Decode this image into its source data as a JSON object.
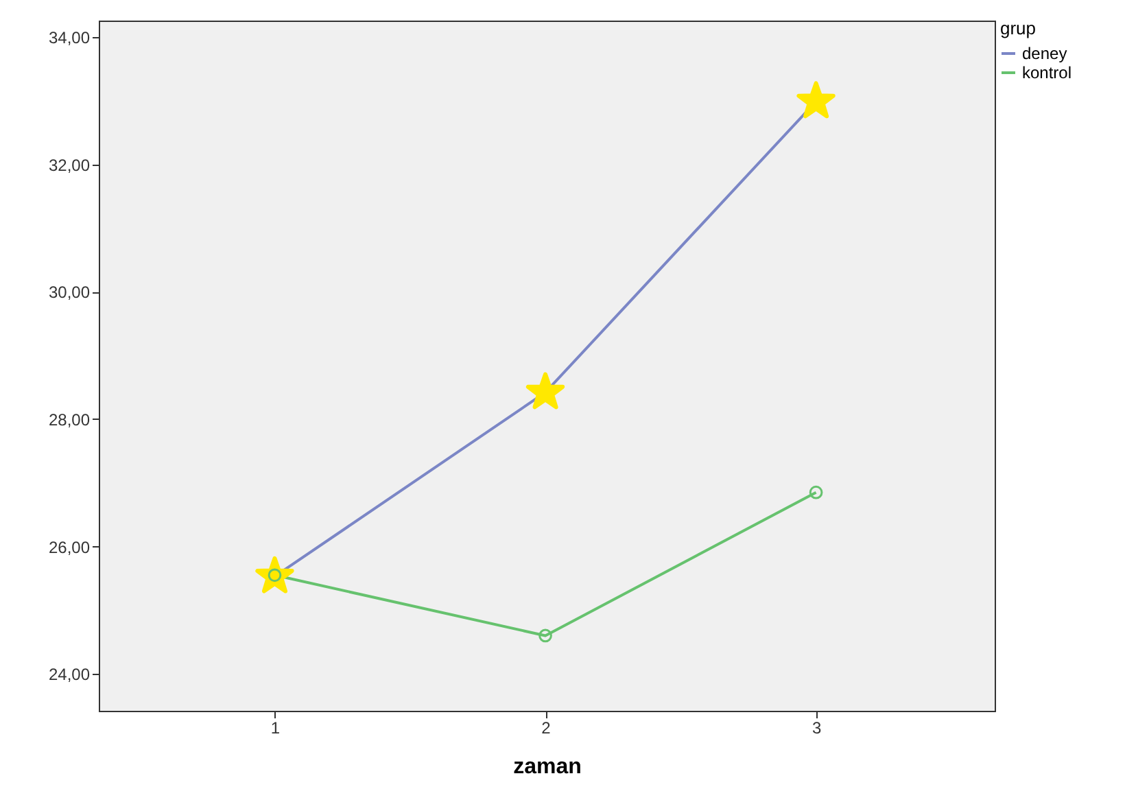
{
  "chart_data": {
    "type": "line",
    "xlabel": "zaman",
    "legend_title": "grup",
    "legend": "top right",
    "grid": false,
    "x": [
      1,
      2,
      3
    ],
    "xlim": [
      0.35,
      3.66
    ],
    "xticks": [
      1,
      2,
      3
    ],
    "ylim": [
      23.42,
      34.26
    ],
    "yticks": [
      {
        "value": 24,
        "label": "24,00"
      },
      {
        "value": 26,
        "label": "26,00"
      },
      {
        "value": 28,
        "label": "28,00"
      },
      {
        "value": 30,
        "label": "30,00"
      },
      {
        "value": 32,
        "label": "32,00"
      },
      {
        "value": 34,
        "label": "34,00"
      }
    ],
    "series": [
      {
        "name": "deney",
        "color": "#7b86c6",
        "marker": "star",
        "values": [
          25.53,
          28.42,
          32.99
        ]
      },
      {
        "name": "kontrol",
        "color": "#66c26e",
        "marker": "circle",
        "values": [
          25.55,
          24.6,
          26.85
        ]
      }
    ]
  }
}
